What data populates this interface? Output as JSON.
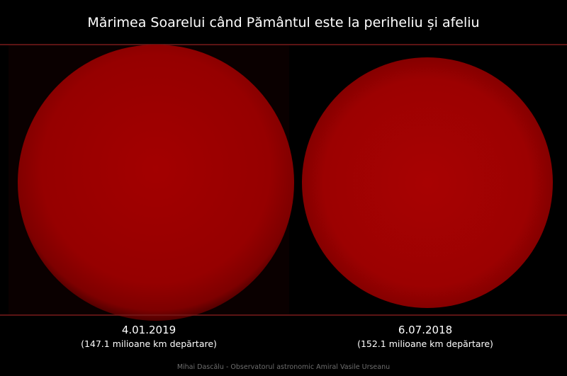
{
  "title": "Mărimea Soarelui când Pământul este la periheliu și afeliu",
  "panels": [
    {
      "date": "4.01.2019",
      "distance": "(147.1 milioane km depărtare)"
    },
    {
      "date": "6.07.2018",
      "distance": "(152.1 milioane km depărtare)"
    }
  ],
  "credit": "Mihai Dascălu - Observatorul astronomic Amiral Vasile Urseanu"
}
